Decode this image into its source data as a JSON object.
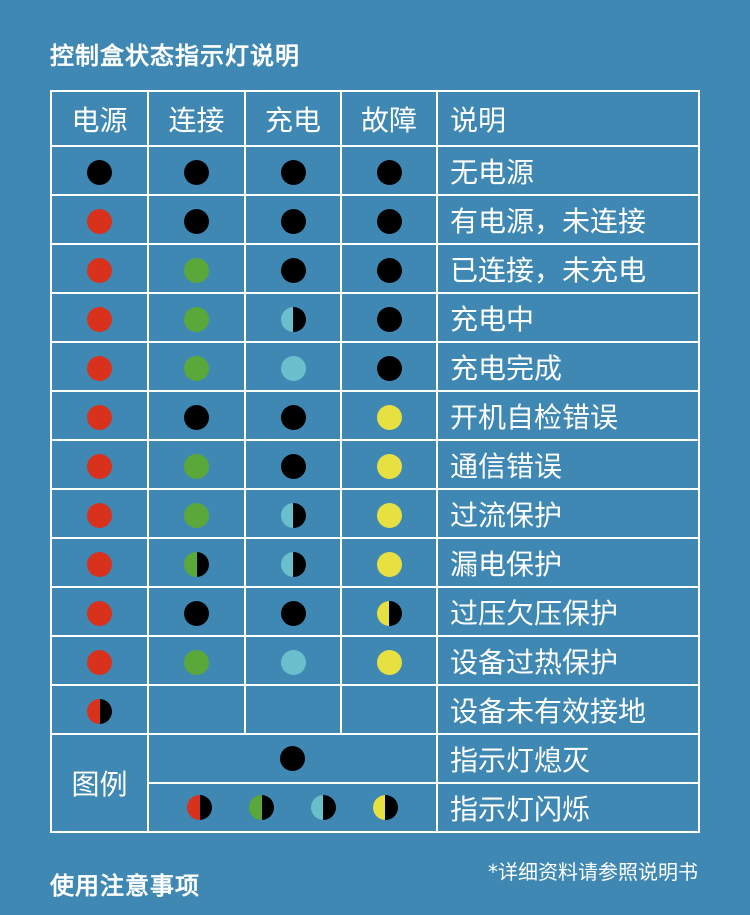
{
  "title": "控制盒状态指示灯说明",
  "colors": {
    "background": "#3f88b4",
    "off": "#000000",
    "red": "#d8311c",
    "green": "#5aa83a",
    "cyan": "#6bbfcc",
    "yellow": "#e6e040"
  },
  "headers": [
    "电源",
    "连接",
    "充电",
    "故障",
    "说明"
  ],
  "rows": [
    {
      "lights": [
        "off",
        "off",
        "off",
        "off"
      ],
      "desc": "无电源"
    },
    {
      "lights": [
        "red",
        "off",
        "off",
        "off"
      ],
      "desc": "有电源，未连接"
    },
    {
      "lights": [
        "red",
        "green",
        "off",
        "off"
      ],
      "desc": "已连接，未充电"
    },
    {
      "lights": [
        "red",
        "green",
        "cyan-blink",
        "off"
      ],
      "desc": "充电中"
    },
    {
      "lights": [
        "red",
        "green",
        "cyan",
        "off"
      ],
      "desc": "充电完成"
    },
    {
      "lights": [
        "red",
        "off",
        "off",
        "yellow"
      ],
      "desc": "开机自检错误"
    },
    {
      "lights": [
        "red",
        "green",
        "off",
        "yellow"
      ],
      "desc": "通信错误"
    },
    {
      "lights": [
        "red",
        "green",
        "cyan-blink",
        "yellow"
      ],
      "desc": "过流保护"
    },
    {
      "lights": [
        "red",
        "green-blink",
        "cyan-blink",
        "yellow"
      ],
      "desc": "漏电保护"
    },
    {
      "lights": [
        "red",
        "off",
        "off",
        "yellow-blink"
      ],
      "desc": "过压欠压保护"
    },
    {
      "lights": [
        "red",
        "green",
        "cyan",
        "yellow"
      ],
      "desc": "设备过热保护"
    },
    {
      "lights": [
        "red-blink",
        "",
        "",
        ""
      ],
      "desc": "设备未有效接地"
    }
  ],
  "legend": {
    "label": "图例",
    "items": [
      {
        "lights": [
          "off"
        ],
        "desc": "指示灯熄灭"
      },
      {
        "lights": [
          "red-blink",
          "green-blink",
          "cyan-blink",
          "yellow-blink"
        ],
        "desc": "指示灯闪烁"
      }
    ]
  },
  "note": "*详细资料请参照说明书",
  "footer_title": "使用注意事项"
}
